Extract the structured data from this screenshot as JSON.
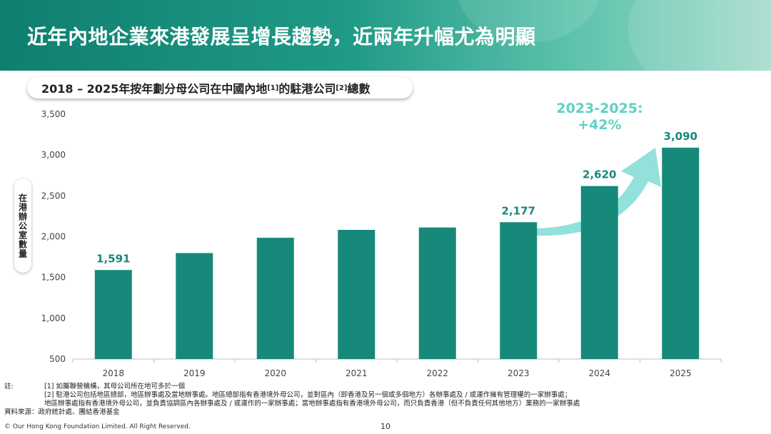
{
  "header": {
    "title": "近年內地企業來港發展呈增長趨勢，近兩年升幅尤為明顯"
  },
  "subtitle": {
    "text_a": "2018 – 2025年按年劃分母公司在中國內地",
    "sup1": "[1]",
    "text_b": "的駐港公司",
    "sup2": "[2]",
    "text_c": "總數"
  },
  "chart_data": {
    "type": "bar",
    "categories": [
      "2018",
      "2019",
      "2020",
      "2021",
      "2022",
      "2023",
      "2024",
      "2025"
    ],
    "values": [
      1591,
      1799,
      1986,
      2083,
      2112,
      2177,
      2620,
      3090
    ],
    "data_labels": [
      "1,591",
      "",
      "",
      "",
      "",
      "2,177",
      "2,620",
      "3,090"
    ],
    "ylabel": "在港辦公室數量",
    "ylim": [
      500,
      3500
    ],
    "yticks": [
      500,
      1000,
      1500,
      2000,
      2500,
      3000,
      3500
    ],
    "ytick_labels": [
      "500",
      "1,000",
      "1,500",
      "2,000",
      "2,500",
      "3,000",
      "3,500"
    ],
    "annotation": {
      "line1": "2023-2025:",
      "line2": "+42%"
    },
    "grid": false,
    "colors": {
      "bar": "#16897a",
      "arrow": "#7fdcd3",
      "annotation": "#5fd0c6"
    }
  },
  "notes": {
    "label": "註:",
    "note1": "[1] 如屬聯營機構，其母公司所在地可多於一個",
    "note2": "[2] 駐港公司包括地區總部，地區辦事處及當地辦事處。地區總部指有香港境外母公司，並對區內（即香港及另一個或多個地方）各辦事處及 / 或運作擁有管理權的一家辦事處；",
    "note3": "地區辦事處指有香港境外母公司，並負責協調區內各辦事處及 / 或運作的一家辦事處；當地辦事處指有香港境外母公司，而只負責香港（但不負責任何其他地方）業務的一家辦事處",
    "source_label": "資料來源：",
    "source": "政府統計處、團結香港基金"
  },
  "footer": {
    "copyright": "© Our Hong Kong Foundation Limited. All Right Reserved.",
    "page": "10"
  }
}
